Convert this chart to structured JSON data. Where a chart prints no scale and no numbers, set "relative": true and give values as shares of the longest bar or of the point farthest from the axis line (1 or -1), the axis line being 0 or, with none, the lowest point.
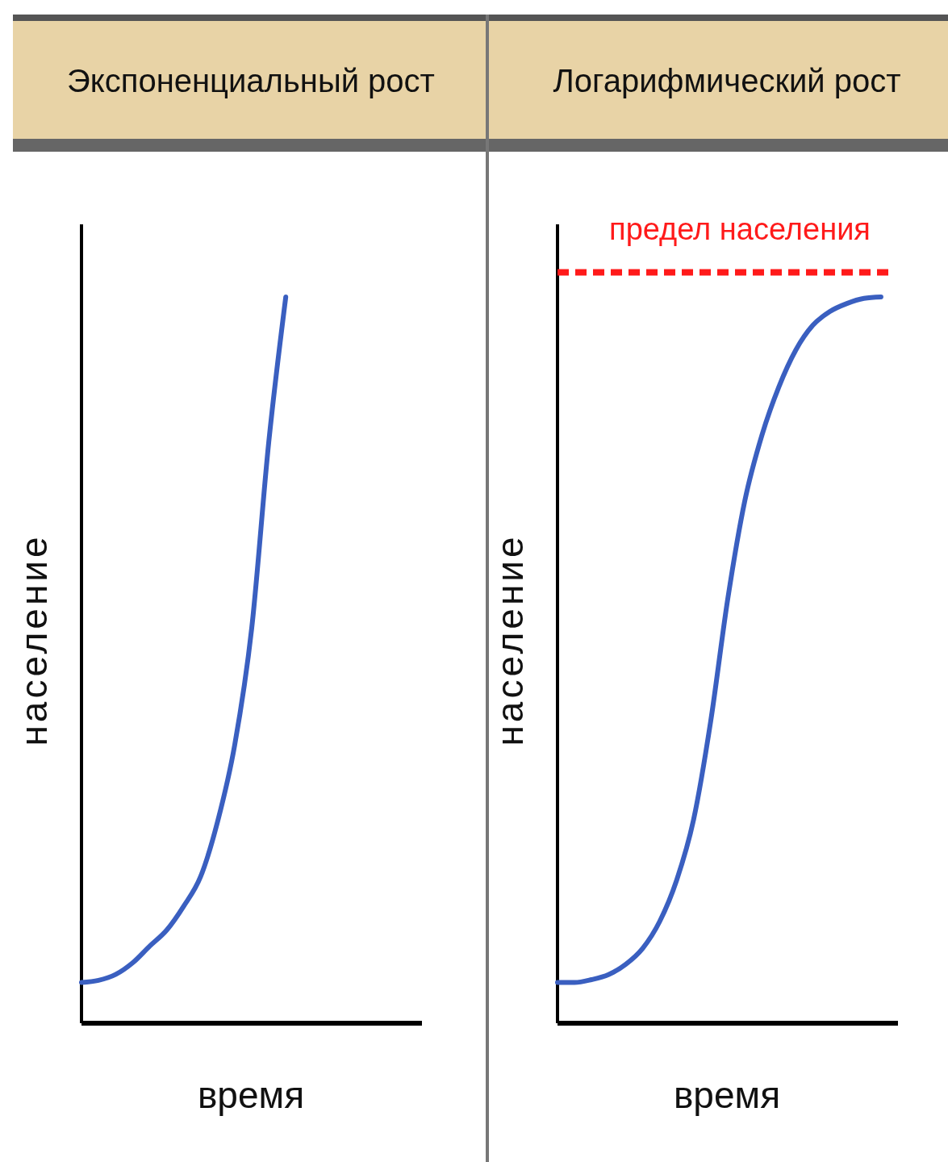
{
  "chart_data": [
    {
      "type": "line",
      "title": "Экспоненциальный рост",
      "xlabel": "время",
      "ylabel": "население",
      "relative": true,
      "categories": [
        null,
        null,
        null,
        null,
        null,
        null,
        null,
        null,
        null,
        null,
        null,
        null,
        null,
        null,
        null,
        null,
        null,
        null,
        null,
        null,
        null
      ],
      "series": [
        {
          "color": "#3a5fc0",
          "values": [
            0.056,
            0.059,
            0.067,
            0.083,
            0.106,
            0.128,
            0.161,
            0.202,
            0.278,
            0.383,
            0.544,
            0.8,
            1.0,
            null,
            null,
            null,
            null,
            null,
            null,
            null,
            null
          ]
        }
      ]
    },
    {
      "type": "line",
      "title": "Логарифмический рост",
      "xlabel": "время",
      "ylabel": "население",
      "relative": true,
      "categories": [
        null,
        null,
        null,
        null,
        null,
        null,
        null,
        null,
        null,
        null,
        null,
        null,
        null,
        null,
        null,
        null,
        null,
        null,
        null,
        null,
        null
      ],
      "series": [
        {
          "color": "#3a5fc0",
          "values": [
            0.056,
            0.056,
            0.06,
            0.067,
            0.081,
            0.103,
            0.14,
            0.197,
            0.281,
            0.416,
            0.584,
            0.719,
            0.809,
            0.876,
            0.927,
            0.961,
            0.98,
            0.991,
            0.998,
            1.0,
            null
          ]
        }
      ],
      "ref_lines": [
        {
          "axis": "y",
          "value": 1.034,
          "label": "предел населения",
          "color": "#ff1a1a",
          "line_style": "dashed"
        }
      ]
    }
  ]
}
